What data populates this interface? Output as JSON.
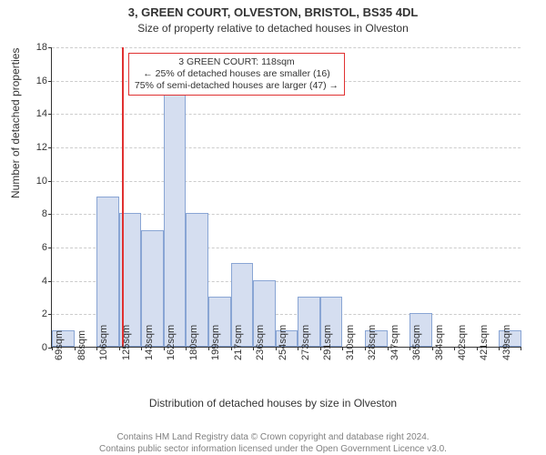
{
  "title": "3, GREEN COURT, OLVESTON, BRISTOL, BS35 4DL",
  "subtitle": "Size of property relative to detached houses in Olveston",
  "chart": {
    "type": "histogram",
    "y_axis_title": "Number of detached properties",
    "x_axis_title": "Distribution of detached houses by size in Olveston",
    "background_color": "#ffffff",
    "grid_color": "#cccccc",
    "axis_color": "#333333",
    "bar_fill": "#d5def0",
    "bar_stroke": "#89a5d4",
    "refline_color": "#e03131",
    "ymin": 0,
    "ymax": 18,
    "ytick_step": 2,
    "bar_width_ratio": 1.0,
    "x_categories": [
      "69sqm",
      "88sqm",
      "106sqm",
      "125sqm",
      "143sqm",
      "162sqm",
      "180sqm",
      "199sqm",
      "217sqm",
      "236sqm",
      "254sqm",
      "273sqm",
      "291sqm",
      "310sqm",
      "328sqm",
      "347sqm",
      "365sqm",
      "384sqm",
      "402sqm",
      "421sqm",
      "439sqm"
    ],
    "values": [
      1,
      0,
      9,
      8,
      7,
      16,
      8,
      3,
      5,
      4,
      1,
      3,
      3,
      0,
      1,
      0,
      2,
      0,
      0,
      0,
      1
    ],
    "reference_x_sqm": 118,
    "x_range": [
      60,
      449
    ],
    "fontsize_ticks": 11,
    "fontsize_axis_title": 12
  },
  "annotation": {
    "line1": "3 GREEN COURT: 118sqm",
    "line2": "← 25% of detached houses are smaller (16)",
    "line3": "75% of semi-detached houses are larger (47) →",
    "border_color": "#e03131",
    "font_size": 10.5
  },
  "footer": {
    "line1": "Contains HM Land Registry data © Crown copyright and database right 2024.",
    "line2": "Contains public sector information licensed under the Open Government Licence v3.0.",
    "color": "#808080",
    "font_size": 10
  }
}
